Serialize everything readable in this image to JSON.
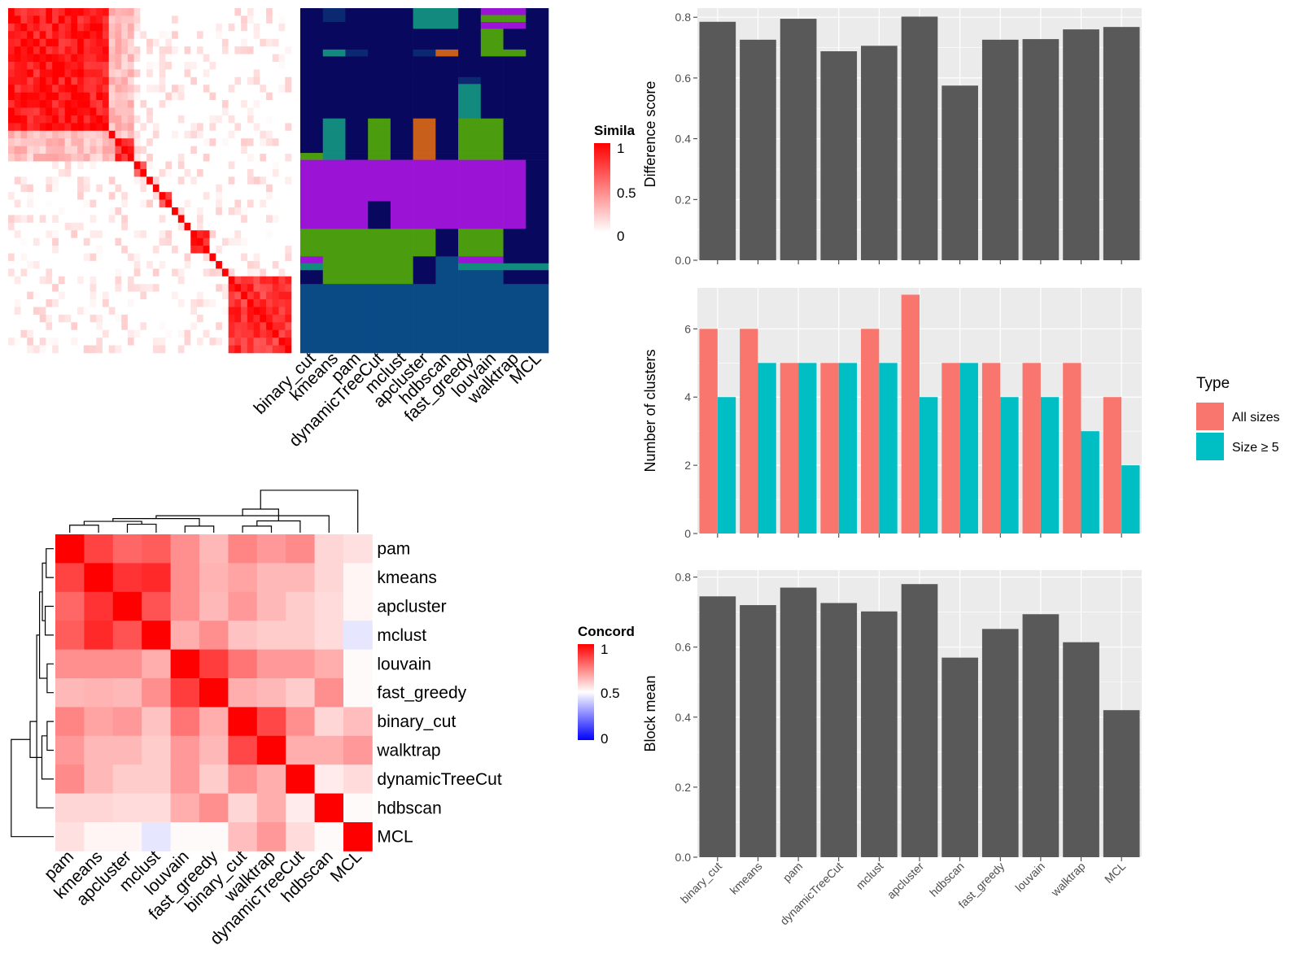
{
  "colors": {
    "heat_high": "#ff0000",
    "heat_mid": "#ff9d9d",
    "heat_low": "#ffffff",
    "concord_low": "#0000ff",
    "panel_bg": "#ebebeb",
    "grid": "#ffffff",
    "bar_fill": "#595959",
    "all_sizes": "#f8766d",
    "size_ge5": "#00bfc4",
    "cluster_palette": [
      "#08085e",
      "#0b2970",
      "#128a7e",
      "#4c9c10",
      "#c8601c",
      "#9b14d6",
      "#0a4a85"
    ]
  },
  "chart_data": [
    {
      "type": "heatmap",
      "name": "similarity_heatmap",
      "legend_title": "Simila",
      "legend_ticks": [
        "1",
        "0.5",
        "0"
      ],
      "blocks": [
        {
          "level": 0.9,
          "size": 16
        },
        {
          "level": 0.7,
          "size": 1
        },
        {
          "level": 0.85,
          "size": 3
        },
        {
          "level": 0.6,
          "size": 2
        },
        {
          "level": 0.3,
          "size": 1
        },
        {
          "level": 0.9,
          "size": 1
        },
        {
          "level": 0.75,
          "size": 2
        },
        {
          "level": 0.9,
          "size": 1
        },
        {
          "level": 0.6,
          "size": 1
        },
        {
          "level": 0.9,
          "size": 1
        },
        {
          "level": 0.85,
          "size": 3
        },
        {
          "level": 0.9,
          "size": 1
        },
        {
          "level": 0.9,
          "size": 1
        },
        {
          "level": 0.9,
          "size": 1
        },
        {
          "level": 0.8,
          "size": 10
        }
      ]
    },
    {
      "type": "heatmap",
      "name": "cluster_membership",
      "columns": [
        "binary_cut",
        "kmeans",
        "pam",
        "dynamicTreeCut",
        "mclust",
        "apcluster",
        "hdbscan",
        "fast_greedy",
        "louvain",
        "walktrap",
        "MCL"
      ],
      "rows": [
        {
          "n": 1,
          "cells": [
            0,
            1,
            0,
            0,
            0,
            2,
            2,
            0,
            5,
            5,
            0
          ]
        },
        {
          "n": 1,
          "cells": [
            0,
            1,
            0,
            0,
            0,
            2,
            2,
            0,
            3,
            3,
            0
          ]
        },
        {
          "n": 1,
          "cells": [
            0,
            0,
            0,
            0,
            0,
            2,
            2,
            0,
            5,
            5,
            0
          ]
        },
        {
          "n": 3,
          "cells": [
            0,
            0,
            0,
            0,
            0,
            0,
            0,
            0,
            3,
            0,
            0
          ]
        },
        {
          "n": 1,
          "cells": [
            0,
            2,
            1,
            0,
            0,
            1,
            4,
            0,
            3,
            3,
            0
          ]
        },
        {
          "n": 3,
          "cells": [
            0,
            0,
            0,
            0,
            0,
            0,
            0,
            0,
            0,
            0,
            0
          ]
        },
        {
          "n": 1,
          "cells": [
            0,
            0,
            0,
            0,
            0,
            0,
            0,
            1,
            0,
            0,
            0
          ]
        },
        {
          "n": 5,
          "cells": [
            0,
            0,
            0,
            0,
            0,
            0,
            0,
            2,
            0,
            0,
            0
          ]
        },
        {
          "n": 5,
          "cells": [
            0,
            2,
            0,
            3,
            0,
            4,
            0,
            3,
            3,
            0,
            0
          ]
        },
        {
          "n": 1,
          "cells": [
            3,
            2,
            0,
            3,
            0,
            4,
            0,
            3,
            3,
            0,
            0
          ]
        },
        {
          "n": 6,
          "cells": [
            5,
            5,
            5,
            5,
            5,
            5,
            5,
            5,
            5,
            5,
            0
          ]
        },
        {
          "n": 4,
          "cells": [
            5,
            5,
            5,
            0,
            5,
            5,
            5,
            5,
            5,
            5,
            0
          ]
        },
        {
          "n": 4,
          "cells": [
            3,
            3,
            3,
            3,
            3,
            3,
            0,
            3,
            3,
            0,
            0
          ]
        },
        {
          "n": 1,
          "cells": [
            5,
            3,
            3,
            3,
            3,
            0,
            6,
            5,
            5,
            0,
            0
          ]
        },
        {
          "n": 1,
          "cells": [
            2,
            3,
            3,
            3,
            3,
            0,
            6,
            2,
            2,
            2,
            2
          ]
        },
        {
          "n": 2,
          "cells": [
            0,
            3,
            3,
            3,
            3,
            0,
            6,
            6,
            6,
            0,
            0
          ]
        },
        {
          "n": 10,
          "cells": [
            6,
            6,
            6,
            6,
            6,
            6,
            6,
            6,
            6,
            6,
            6
          ]
        }
      ]
    },
    {
      "type": "heatmap",
      "name": "concordance",
      "legend_title": "Concord",
      "legend_ticks": [
        "1",
        "0.5",
        "0"
      ],
      "labels": [
        "pam",
        "kmeans",
        "apcluster",
        "mclust",
        "louvain",
        "fast_greedy",
        "binary_cut",
        "walktrap",
        "dynamicTreeCut",
        "hdbscan",
        "MCL"
      ],
      "values": [
        [
          1.0,
          0.87,
          0.8,
          0.82,
          0.72,
          0.64,
          0.74,
          0.7,
          0.73,
          0.58,
          0.56
        ],
        [
          0.87,
          1.0,
          0.9,
          0.92,
          0.72,
          0.65,
          0.68,
          0.64,
          0.64,
          0.58,
          0.52
        ],
        [
          0.8,
          0.9,
          1.0,
          0.84,
          0.72,
          0.64,
          0.7,
          0.64,
          0.6,
          0.57,
          0.52
        ],
        [
          0.82,
          0.92,
          0.84,
          1.0,
          0.66,
          0.72,
          0.62,
          0.6,
          0.6,
          0.57,
          0.45
        ],
        [
          0.72,
          0.72,
          0.72,
          0.66,
          1.0,
          0.88,
          0.77,
          0.7,
          0.7,
          0.66,
          0.51
        ],
        [
          0.64,
          0.65,
          0.64,
          0.72,
          0.88,
          1.0,
          0.66,
          0.64,
          0.6,
          0.72,
          0.51
        ],
        [
          0.74,
          0.68,
          0.7,
          0.62,
          0.77,
          0.66,
          1.0,
          0.86,
          0.72,
          0.58,
          0.63
        ],
        [
          0.7,
          0.64,
          0.64,
          0.6,
          0.7,
          0.64,
          0.86,
          1.0,
          0.66,
          0.66,
          0.7
        ],
        [
          0.73,
          0.64,
          0.6,
          0.6,
          0.7,
          0.6,
          0.72,
          0.66,
          1.0,
          0.54,
          0.57
        ],
        [
          0.58,
          0.58,
          0.57,
          0.57,
          0.66,
          0.72,
          0.58,
          0.66,
          0.54,
          1.0,
          0.51
        ],
        [
          0.56,
          0.52,
          0.52,
          0.45,
          0.51,
          0.51,
          0.63,
          0.7,
          0.57,
          0.51,
          1.0
        ]
      ]
    },
    {
      "type": "bar",
      "name": "difference_score",
      "ylabel": "Difference score",
      "xlabel": "",
      "ylim": [
        0,
        0.83
      ],
      "yticks": [
        "0.0",
        "0.2",
        "0.4",
        "0.6",
        "0.8"
      ],
      "categories": [
        "binary_cut",
        "kmeans",
        "pam",
        "dynamicTreeCut",
        "mclust",
        "apcluster",
        "hdbscan",
        "fast_greedy",
        "louvain",
        "walktrap",
        "MCL"
      ],
      "values": [
        0.785,
        0.726,
        0.795,
        0.688,
        0.706,
        0.802,
        0.575,
        0.726,
        0.728,
        0.76,
        0.768
      ],
      "grid": true
    },
    {
      "type": "bar",
      "name": "number_of_clusters",
      "ylabel": "Number of clusters",
      "xlabel": "",
      "ylim": [
        0,
        7.2
      ],
      "yticks": [
        "0",
        "2",
        "4",
        "6"
      ],
      "categories": [
        "binary_cut",
        "kmeans",
        "pam",
        "dynamicTreeCut",
        "mclust",
        "apcluster",
        "hdbscan",
        "fast_greedy",
        "louvain",
        "walktrap",
        "MCL"
      ],
      "series": [
        {
          "name": "All sizes",
          "values": [
            6,
            6,
            5,
            5,
            6,
            7,
            5,
            5,
            5,
            5,
            4
          ]
        },
        {
          "name": "Size ≥ 5",
          "values": [
            4,
            5,
            5,
            5,
            5,
            4,
            5,
            4,
            4,
            3,
            2
          ]
        }
      ],
      "legend_title": "Type",
      "legend_position": "right",
      "grid": true
    },
    {
      "type": "bar",
      "name": "block_mean",
      "ylabel": "Block mean",
      "xlabel": "",
      "ylim": [
        0,
        0.82
      ],
      "yticks": [
        "0.0",
        "0.2",
        "0.4",
        "0.6",
        "0.8"
      ],
      "categories": [
        "binary_cut",
        "kmeans",
        "pam",
        "dynamicTreeCut",
        "mclust",
        "apcluster",
        "hdbscan",
        "fast_greedy",
        "louvain",
        "walktrap",
        "MCL"
      ],
      "values": [
        0.745,
        0.72,
        0.77,
        0.726,
        0.702,
        0.78,
        0.57,
        0.652,
        0.694,
        0.614,
        0.42
      ],
      "grid": true
    }
  ]
}
